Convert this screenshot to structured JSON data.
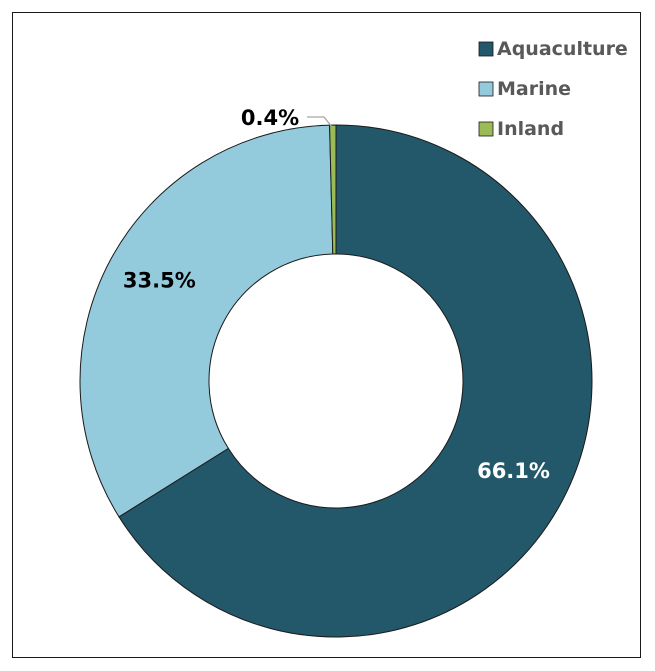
{
  "chart_data": {
    "type": "pie",
    "style": "donut",
    "title": "",
    "categories": [
      "Aquaculture",
      "Marine",
      "Inland"
    ],
    "values": [
      66.1,
      33.5,
      0.4
    ],
    "labels": [
      "66.1%",
      "33.5%",
      "0.4%"
    ],
    "colors": [
      "#23586a",
      "#94cbdc",
      "#9bbb59"
    ],
    "label_colors": [
      "#ffffff",
      "#000000",
      "#000000"
    ],
    "legend": {
      "position": "top-right",
      "entries": [
        "Aquaculture",
        "Marine",
        "Inland"
      ]
    }
  }
}
